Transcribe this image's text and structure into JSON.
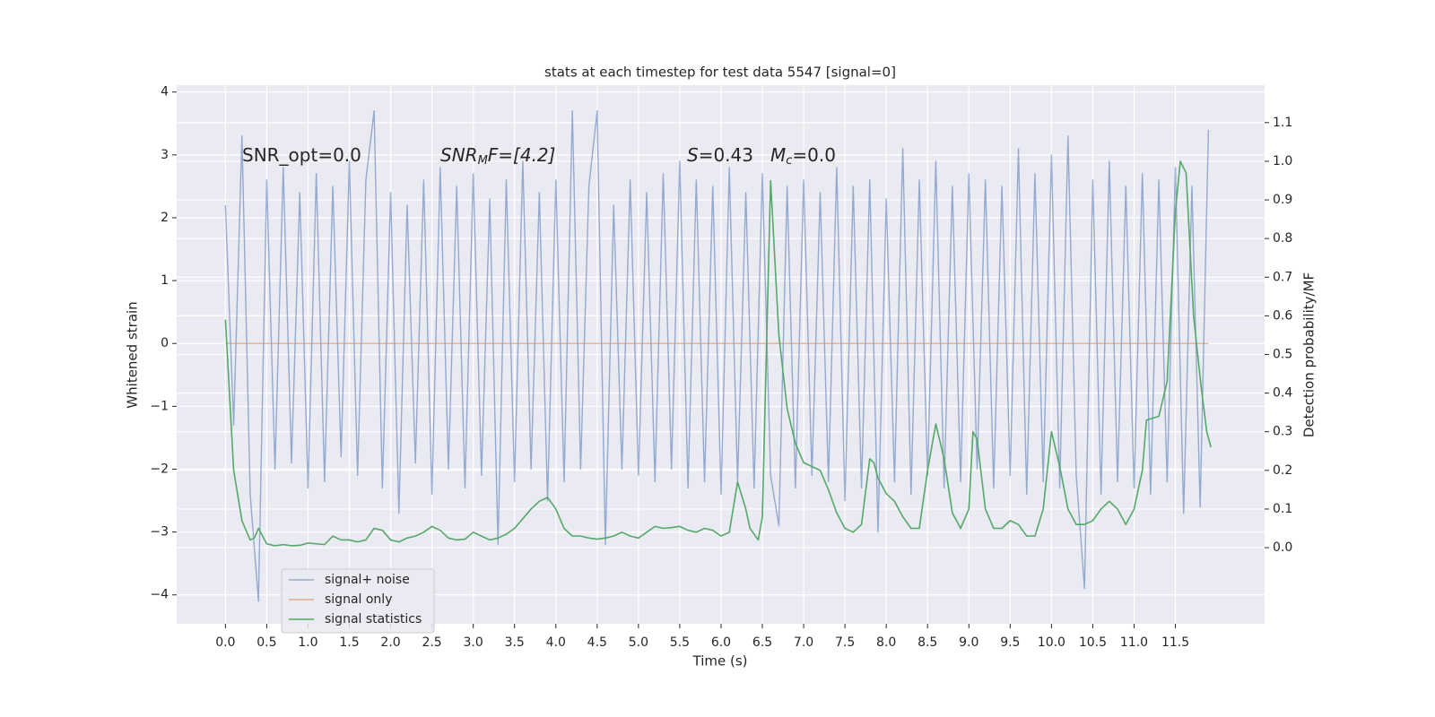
{
  "chart_data": {
    "type": "line",
    "title": "stats at each timestep for test data 5547 [signal=0]",
    "xlabel": "Time (s)",
    "ylabel": "Whitened strain",
    "y2label": "Detection probability/MF",
    "annotations": [
      [
        "SNR_opt=0.0"
      ],
      [
        "SNR",
        "M",
        "F=[4.2]"
      ],
      [
        "S",
        "=0.43"
      ],
      [
        "M",
        "c",
        "=0.0"
      ]
    ],
    "xlim": [
      -0.59,
      12.58
    ],
    "ylim": [
      -4.46,
      4.11
    ],
    "y2lim": [
      -0.197,
      1.197
    ],
    "xticks": [
      {
        "value": 0,
        "label": "0.0"
      },
      {
        "value": 0.5,
        "label": "0.5"
      },
      {
        "value": 1,
        "label": "1.0"
      },
      {
        "value": 1.5,
        "label": "1.5"
      },
      {
        "value": 2,
        "label": "2.0"
      },
      {
        "value": 2.5,
        "label": "2.5"
      },
      {
        "value": 3,
        "label": "3.0"
      },
      {
        "value": 3.5,
        "label": "3.5"
      },
      {
        "value": 4,
        "label": "4.0"
      },
      {
        "value": 4.5,
        "label": "4.5"
      },
      {
        "value": 5,
        "label": "5.0"
      },
      {
        "value": 5.5,
        "label": "5.5"
      },
      {
        "value": 6,
        "label": "6.0"
      },
      {
        "value": 6.5,
        "label": "6.5"
      },
      {
        "value": 7,
        "label": "7.0"
      },
      {
        "value": 7.5,
        "label": "7.5"
      },
      {
        "value": 8,
        "label": "8.0"
      },
      {
        "value": 8.5,
        "label": "8.5"
      },
      {
        "value": 9,
        "label": "9.0"
      },
      {
        "value": 9.5,
        "label": "9.5"
      },
      {
        "value": 10,
        "label": "10.0"
      },
      {
        "value": 10.5,
        "label": "10.5"
      },
      {
        "value": 11,
        "label": "11.0"
      },
      {
        "value": 11.5,
        "label": "11.5"
      }
    ],
    "yticks": [
      {
        "value": -4,
        "label": "−4"
      },
      {
        "value": -3,
        "label": "−3"
      },
      {
        "value": -2,
        "label": "−2"
      },
      {
        "value": -1,
        "label": "−1"
      },
      0,
      1,
      2,
      3,
      4
    ],
    "y2ticks": [
      {
        "value": 0,
        "label": "0.0"
      },
      {
        "value": 0.1,
        "label": "0.1"
      },
      {
        "value": 0.2,
        "label": "0.2"
      },
      {
        "value": 0.3,
        "label": "0.3"
      },
      {
        "value": 0.4,
        "label": "0.4"
      },
      {
        "value": 0.5,
        "label": "0.5"
      },
      {
        "value": 0.6,
        "label": "0.6"
      },
      {
        "value": 0.7,
        "label": "0.7"
      },
      {
        "value": 0.8,
        "label": "0.8"
      },
      {
        "value": 0.9,
        "label": "0.9"
      },
      {
        "value": 1,
        "label": "1.0"
      },
      {
        "value": 1.1,
        "label": "1.1"
      }
    ],
    "grid": true,
    "legend": "lower left",
    "series": [
      {
        "name": "signal+ noise",
        "color": "#4c72b0",
        "x": [
          0,
          0.1,
          0.2,
          0.3,
          0.4,
          0.5,
          0.6,
          0.7,
          0.8,
          0.9,
          1,
          1.1,
          1.2,
          1.3,
          1.4,
          1.5,
          1.6,
          1.7,
          1.8,
          1.9,
          2,
          2.1,
          2.2,
          2.3,
          2.4,
          2.5,
          2.6,
          2.7,
          2.8,
          2.9,
          3,
          3.1,
          3.2,
          3.3,
          3.4,
          3.5,
          3.6,
          3.7,
          3.8,
          3.9,
          4,
          4.1,
          4.2,
          4.3,
          4.4,
          4.5,
          4.6,
          4.7,
          4.8,
          4.9,
          5,
          5.1,
          5.2,
          5.3,
          5.4,
          5.5,
          5.6,
          5.7,
          5.8,
          5.9,
          6,
          6.1,
          6.2,
          6.3,
          6.4,
          6.5,
          6.6,
          6.7,
          6.8,
          6.9,
          7,
          7.1,
          7.2,
          7.3,
          7.4,
          7.5,
          7.6,
          7.7,
          7.8,
          7.9,
          8,
          8.1,
          8.2,
          8.3,
          8.4,
          8.5,
          8.6,
          8.7,
          8.8,
          8.9,
          9,
          9.1,
          9.2,
          9.3,
          9.4,
          9.5,
          9.6,
          9.7,
          9.8,
          9.9,
          10,
          10.1,
          10.2,
          10.3,
          10.4,
          10.5,
          10.6,
          10.7,
          10.8,
          10.9,
          11,
          11.1,
          11.2,
          11.3,
          11.4,
          11.5,
          11.6,
          11.7,
          11.8,
          11.9
        ],
        "values": [
          2.2,
          -1.3,
          3.3,
          -2.4,
          -4.1,
          2.6,
          -2.0,
          2.8,
          -1.9,
          2.4,
          -2.3,
          2.7,
          -2.2,
          2.5,
          -1.8,
          2.9,
          -2.1,
          2.6,
          3.7,
          -2.3,
          2.4,
          -2.7,
          2.2,
          -1.9,
          2.6,
          -2.4,
          2.8,
          -2.0,
          2.5,
          -2.3,
          2.7,
          -2.1,
          2.3,
          -3.2,
          2.6,
          -2.2,
          2.9,
          -2.0,
          2.4,
          -2.5,
          2.6,
          -2.2,
          3.7,
          -2.0,
          2.5,
          3.7,
          -3.2,
          2.2,
          -2.0,
          2.6,
          -2.1,
          2.4,
          -2.2,
          2.7,
          -2.0,
          2.9,
          -2.3,
          2.6,
          -2.2,
          2.5,
          -2.4,
          2.8,
          -2.2,
          2.4,
          -2.3,
          2.7,
          -2.1,
          -2.9,
          2.5,
          -2.3,
          2.6,
          -2.1,
          2.4,
          -2.2,
          2.8,
          -2.5,
          2.5,
          -2.3,
          2.6,
          -3.0,
          2.3,
          -2.2,
          3.1,
          -2.4,
          2.6,
          -2.1,
          2.9,
          -2.3,
          2.5,
          -2.2,
          2.7,
          -2.0,
          2.6,
          -2.3,
          2.5,
          -2.1,
          3.1,
          -2.4,
          2.7,
          -2.2,
          3.0,
          -2.3,
          3.3,
          -2.1,
          -3.9,
          2.6,
          -2.4,
          2.9,
          -2.2,
          2.5,
          -2.3,
          2.7,
          -2.4,
          2.6,
          -2.2,
          2.8,
          -2.7,
          2.5,
          -2.6,
          3.4
        ]
      },
      {
        "name": "signal only",
        "color": "#dd8452",
        "x": [
          0,
          11.9
        ],
        "values": [
          0,
          0
        ]
      },
      {
        "name": "signal statistics",
        "color": "#55a868",
        "axis": "y2",
        "x": [
          0,
          0.1,
          0.2,
          0.3,
          0.35,
          0.4,
          0.5,
          0.6,
          0.7,
          0.8,
          0.9,
          1.0,
          1.1,
          1.2,
          1.3,
          1.4,
          1.5,
          1.6,
          1.7,
          1.8,
          1.9,
          2.0,
          2.1,
          2.2,
          2.3,
          2.4,
          2.5,
          2.6,
          2.7,
          2.8,
          2.9,
          3.0,
          3.1,
          3.2,
          3.3,
          3.4,
          3.5,
          3.6,
          3.7,
          3.8,
          3.9,
          4.0,
          4.1,
          4.2,
          4.3,
          4.4,
          4.5,
          4.6,
          4.7,
          4.8,
          4.9,
          5.0,
          5.1,
          5.2,
          5.3,
          5.4,
          5.5,
          5.6,
          5.7,
          5.8,
          5.9,
          6.0,
          6.1,
          6.2,
          6.3,
          6.35,
          6.45,
          6.5,
          6.6,
          6.7,
          6.8,
          6.9,
          7.0,
          7.1,
          7.2,
          7.3,
          7.4,
          7.5,
          7.6,
          7.7,
          7.8,
          7.85,
          7.9,
          8.0,
          8.1,
          8.2,
          8.3,
          8.4,
          8.5,
          8.6,
          8.7,
          8.8,
          8.9,
          9.0,
          9.05,
          9.1,
          9.2,
          9.3,
          9.4,
          9.5,
          9.6,
          9.7,
          9.8,
          9.9,
          10.0,
          10.1,
          10.2,
          10.3,
          10.4,
          10.5,
          10.6,
          10.7,
          10.8,
          10.9,
          11.0,
          11.1,
          11.15,
          11.3,
          11.4,
          11.5,
          11.56,
          11.63,
          11.72,
          11.81,
          11.88,
          11.93
        ],
        "values": [
          0.59,
          0.2,
          0.07,
          0.02,
          0.025,
          0.05,
          0.01,
          0.005,
          0.008,
          0.005,
          0.006,
          0.012,
          0.01,
          0.008,
          0.03,
          0.02,
          0.02,
          0.015,
          0.02,
          0.05,
          0.045,
          0.02,
          0.015,
          0.025,
          0.03,
          0.04,
          0.055,
          0.045,
          0.025,
          0.02,
          0.022,
          0.04,
          0.03,
          0.02,
          0.025,
          0.035,
          0.05,
          0.075,
          0.1,
          0.12,
          0.13,
          0.1,
          0.05,
          0.03,
          0.03,
          0.025,
          0.022,
          0.025,
          0.03,
          0.04,
          0.03,
          0.025,
          0.04,
          0.055,
          0.05,
          0.052,
          0.055,
          0.045,
          0.04,
          0.05,
          0.045,
          0.03,
          0.04,
          0.17,
          0.1,
          0.05,
          0.02,
          0.08,
          0.95,
          0.55,
          0.36,
          0.27,
          0.22,
          0.21,
          0.2,
          0.15,
          0.09,
          0.05,
          0.04,
          0.06,
          0.23,
          0.22,
          0.18,
          0.14,
          0.12,
          0.08,
          0.05,
          0.05,
          0.2,
          0.32,
          0.23,
          0.09,
          0.05,
          0.1,
          0.3,
          0.28,
          0.1,
          0.05,
          0.05,
          0.07,
          0.06,
          0.03,
          0.03,
          0.1,
          0.3,
          0.21,
          0.1,
          0.06,
          0.06,
          0.07,
          0.1,
          0.12,
          0.1,
          0.06,
          0.1,
          0.2,
          0.33,
          0.34,
          0.43,
          0.87,
          1.0,
          0.97,
          0.6,
          0.42,
          0.3,
          0.26
        ]
      }
    ]
  }
}
